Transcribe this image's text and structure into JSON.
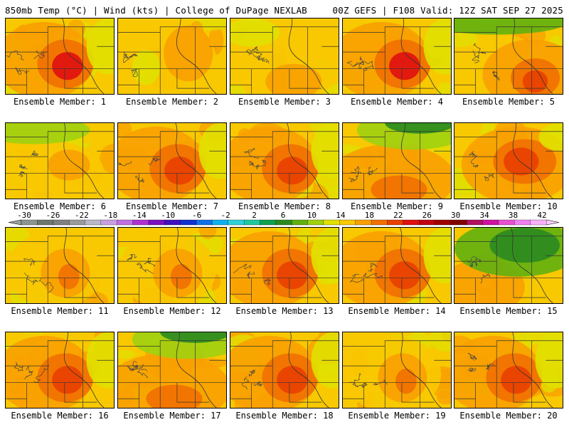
{
  "header": {
    "left": "850mb Temp (°C) | Wind (kts) | College of DuPage NEXLAB",
    "right": "00Z GEFS | F108 Valid: 12Z SAT SEP 27 2025"
  },
  "panels": [
    {
      "label": "Ensemble Member: 1",
      "scene": "hotcenter",
      "intensity": 0.9
    },
    {
      "label": "Ensemble Member: 2",
      "scene": "warmne",
      "intensity": 0.55
    },
    {
      "label": "Ensemble Member: 3",
      "scene": "warmse",
      "intensity": 0.6
    },
    {
      "label": "Ensemble Member: 4",
      "scene": "hotcenter",
      "intensity": 1.0
    },
    {
      "label": "Ensemble Member: 5",
      "scene": "hotse",
      "intensity": 0.9
    },
    {
      "label": "Ensemble Member: 6",
      "scene": "cool",
      "intensity": 0.35
    },
    {
      "label": "Ensemble Member: 7",
      "scene": "hotcenter",
      "intensity": 0.85
    },
    {
      "label": "Ensemble Member: 8",
      "scene": "hotcenter",
      "intensity": 0.8
    },
    {
      "label": "Ensemble Member: 9",
      "scene": "greentop",
      "intensity": 0.55
    },
    {
      "label": "Ensemble Member: 10",
      "scene": "hotne",
      "intensity": 0.95
    },
    {
      "label": "Ensemble Member: 11",
      "scene": "warmcenter",
      "intensity": 0.6
    },
    {
      "label": "Ensemble Member: 12",
      "scene": "warmcenter",
      "intensity": 0.7
    },
    {
      "label": "Ensemble Member: 13",
      "scene": "hotcenter",
      "intensity": 0.85
    },
    {
      "label": "Ensemble Member: 14",
      "scene": "hotcenter",
      "intensity": 0.8
    },
    {
      "label": "Ensemble Member: 15",
      "scene": "greenne",
      "intensity": 0.5
    },
    {
      "label": "Ensemble Member: 16",
      "scene": "hotcenter",
      "intensity": 0.85
    },
    {
      "label": "Ensemble Member: 17",
      "scene": "greentop",
      "intensity": 0.7
    },
    {
      "label": "Ensemble Member: 18",
      "scene": "hotcenter",
      "intensity": 0.75
    },
    {
      "label": "Ensemble Member: 19",
      "scene": "warmcenter",
      "intensity": 0.65
    },
    {
      "label": "Ensemble Member: 20",
      "scene": "hotcenter",
      "intensity": 0.8
    }
  ],
  "colorbar": {
    "labels": [
      "-30",
      "-26",
      "-22",
      "-18",
      "-14",
      "-10",
      "-6",
      "-2",
      "2",
      "6",
      "10",
      "14",
      "18",
      "22",
      "26",
      "30",
      "34",
      "38",
      "42"
    ],
    "colors": [
      "#8c9490",
      "#6e7670",
      "#7d7f80",
      "#9a9a9a",
      "#b8b8c8",
      "#c8a0e0",
      "#c070e0",
      "#b030d0",
      "#7a10c0",
      "#4010c0",
      "#1030d0",
      "#1070e8",
      "#10b0f0",
      "#30d0d8",
      "#20c8a0",
      "#10a050",
      "#2a8a20",
      "#60b010",
      "#a0d010",
      "#e0e000",
      "#f8c800",
      "#f8a000",
      "#f07000",
      "#e84000",
      "#e01010",
      "#c00010",
      "#a00000",
      "#800000",
      "#b01060",
      "#d010a0",
      "#e850d0",
      "#f080f0",
      "#f8b0f8"
    ]
  }
}
